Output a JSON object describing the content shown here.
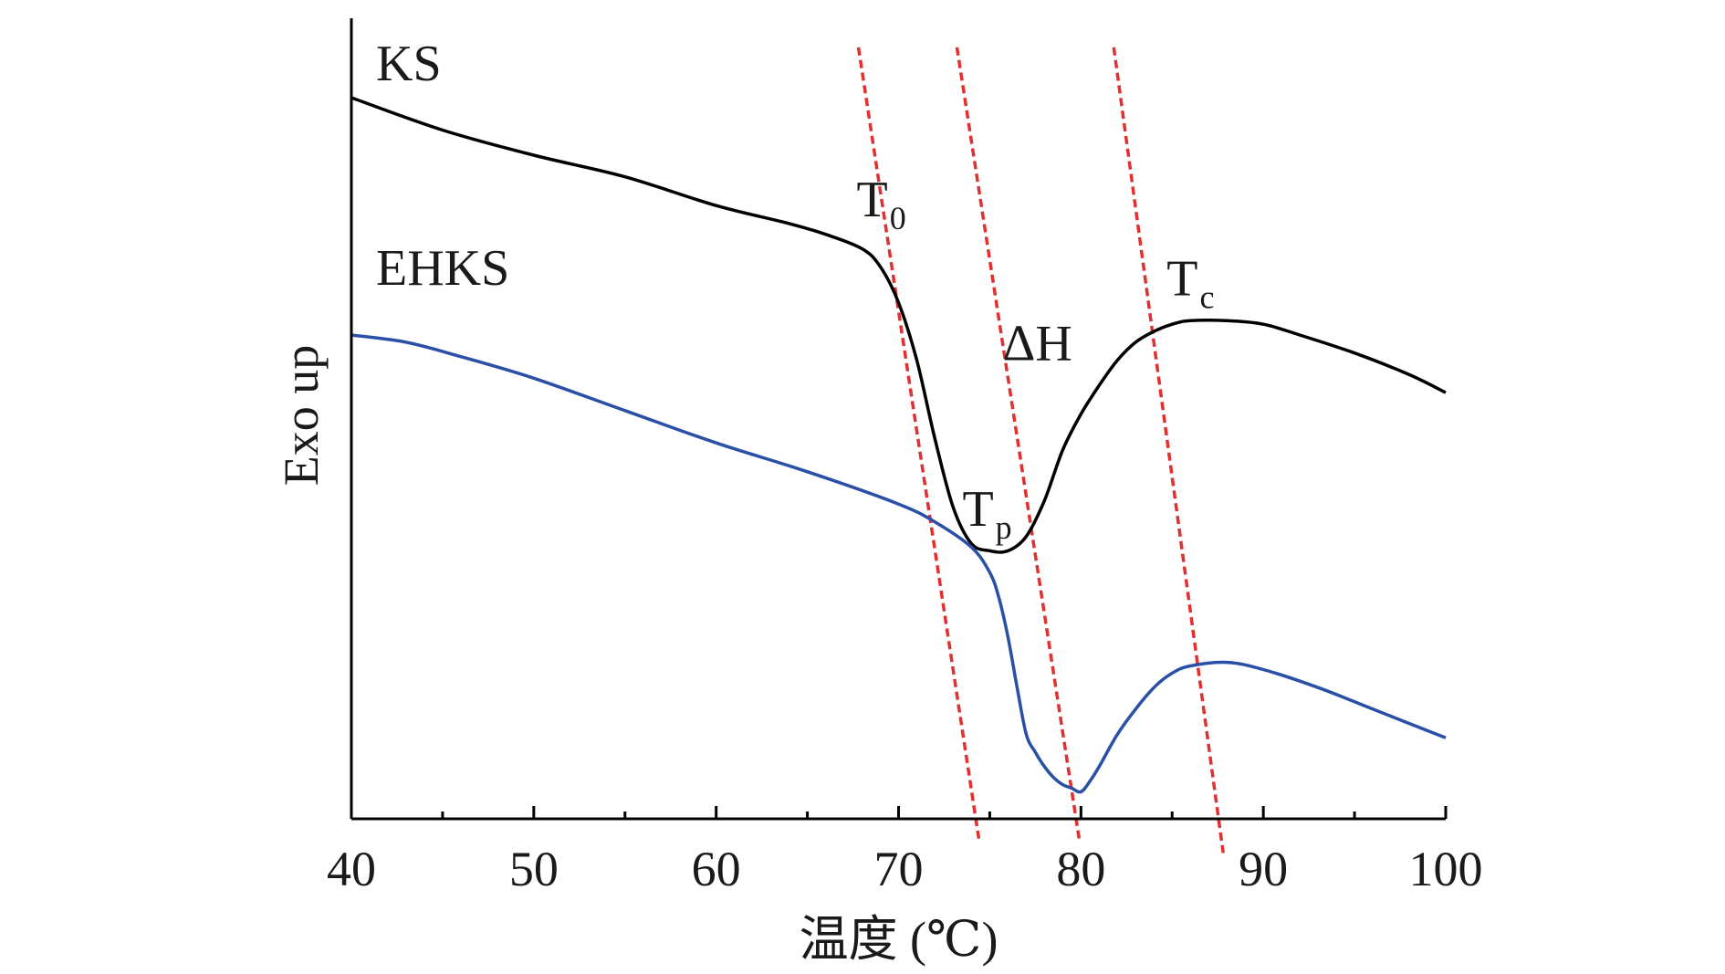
{
  "chart_data": {
    "type": "line",
    "xlabel": "温度 (℃)",
    "ylabel": "Exo up",
    "xlim": [
      40,
      100
    ],
    "xticks": [
      40,
      50,
      60,
      70,
      80,
      90,
      100
    ],
    "xticks_minor": [
      45,
      55,
      65,
      75,
      85,
      95
    ],
    "y_units": "relative heat flow (0-100, arbitrary)",
    "ylim": [
      0,
      100
    ],
    "grid": false,
    "series": [
      {
        "name": "KS",
        "color": "#000000",
        "x": [
          40,
          45,
          50,
          55,
          60,
          64,
          66,
          68,
          69,
          70,
          71,
          72,
          73,
          74,
          75,
          76,
          77,
          78,
          79,
          80,
          81,
          82,
          83,
          84,
          85,
          86,
          88,
          90,
          92,
          95,
          98,
          100
        ],
        "y": [
          100,
          95.5,
          92,
          89,
          85,
          82.5,
          81,
          79,
          76.5,
          71.5,
          63.5,
          52.5,
          43,
          38,
          37,
          37,
          39,
          44,
          51,
          56,
          60,
          63.5,
          66,
          67.5,
          68.5,
          69,
          69,
          68.5,
          67,
          64.5,
          61.5,
          59
        ]
      },
      {
        "name": "EHKS",
        "color": "#2a4fa6",
        "x": [
          40,
          43,
          46,
          50,
          55,
          60,
          65,
          70,
          72,
          74,
          75,
          75.5,
          76,
          76.5,
          77,
          77.5,
          78,
          78.5,
          79,
          79.5,
          80,
          80.5,
          81,
          82,
          83,
          84,
          85,
          86,
          88,
          90,
          93,
          96,
          100
        ],
        "y": [
          67,
          66,
          64,
          61,
          56.5,
          52,
          48,
          43.5,
          41,
          37.5,
          34,
          30.5,
          25,
          18,
          11.5,
          9,
          7,
          5.5,
          4.5,
          4,
          3.5,
          5,
          7,
          11.5,
          15,
          18,
          20,
          21,
          21.5,
          20.5,
          18,
          15,
          11
        ]
      }
    ],
    "annotations": [
      {
        "base": "T",
        "sub": "0",
        "x": 67.7,
        "y": 83.5
      },
      {
        "base": "T",
        "sub": "p",
        "x": 73.5,
        "y": 40.5
      },
      {
        "base": "ΔH",
        "sub": "",
        "x": 75.7,
        "y": 63.5
      },
      {
        "base": "T",
        "sub": "c",
        "x": 84.7,
        "y": 72.5
      }
    ],
    "reference_lines": [
      {
        "color": "#e03030",
        "style": "dashed",
        "x1": 67.8,
        "y1": 107,
        "x2": 74.4,
        "y2": -3
      },
      {
        "color": "#e03030",
        "style": "dashed",
        "x1": 73.2,
        "y1": 107,
        "x2": 79.9,
        "y2": -3
      },
      {
        "color": "#e03030",
        "style": "dashed",
        "x1": 81.8,
        "y1": 107,
        "x2": 87.8,
        "y2": -5
      }
    ]
  }
}
